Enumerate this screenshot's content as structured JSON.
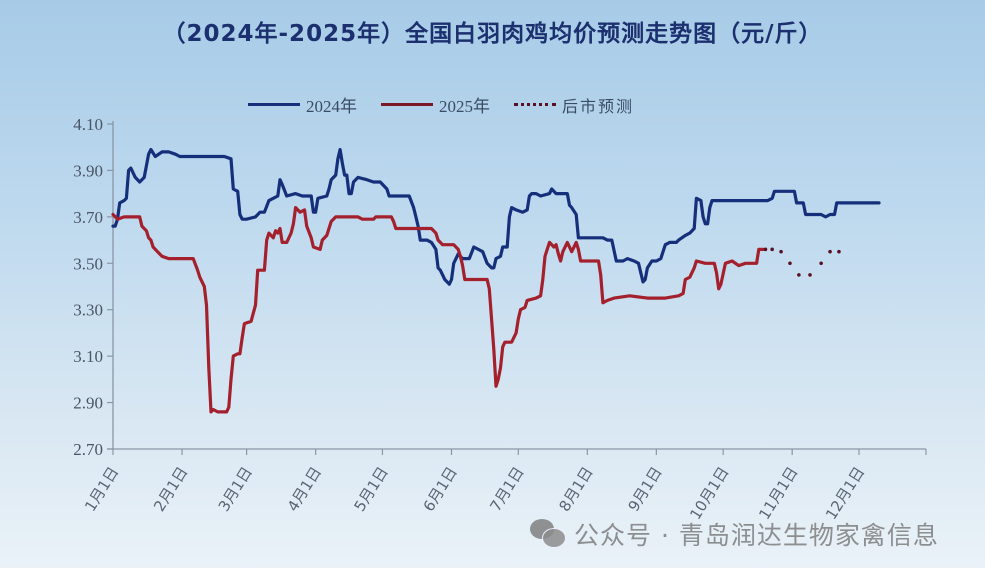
{
  "title": "（2024年-2025年）全国白羽肉鸡均价预测走势图（元/斤）",
  "legend": [
    {
      "label": "2024年",
      "color": "#152f7a",
      "style": "solid"
    },
    {
      "label": "2025年",
      "color": "#a3202c",
      "style": "solid"
    },
    {
      "label": "后市预测",
      "color": "#5a1024",
      "style": "dotted"
    }
  ],
  "watermark": "公众号 · 青岛润达生物家禽信息",
  "chart_data": {
    "type": "line",
    "title": "（2024年-2025年）全国白羽肉鸡均价预测走势图（元/斤）",
    "xlabel": "",
    "ylabel": "元/斤",
    "ylim": [
      2.7,
      4.1
    ],
    "yticks": [
      "4.10",
      "3.90",
      "3.70",
      "3.50",
      "3.30",
      "3.10",
      "2.90",
      "2.70"
    ],
    "xticks": [
      "1月1日",
      "2月1日",
      "3月1日",
      "4月1日",
      "5月1日",
      "6月1日",
      "7月1日",
      "8月1日",
      "9月1日",
      "10月1日",
      "11月1日",
      "12月1日"
    ],
    "xtick_days": [
      0,
      31,
      60,
      91,
      121,
      152,
      182,
      213,
      244,
      274,
      305,
      335
    ],
    "x_unit": "day_of_year",
    "grid": false,
    "legend_position": "top",
    "series": [
      {
        "name": "2024年",
        "color": "#152f7a",
        "style": "solid",
        "points": [
          [
            0,
            3.66
          ],
          [
            1,
            3.66
          ],
          [
            2,
            3.69
          ],
          [
            3,
            3.76
          ],
          [
            5,
            3.77
          ],
          [
            6,
            3.78
          ],
          [
            7,
            3.9
          ],
          [
            8,
            3.91
          ],
          [
            10,
            3.87
          ],
          [
            12,
            3.85
          ],
          [
            14,
            3.87
          ],
          [
            15,
            3.92
          ],
          [
            16,
            3.97
          ],
          [
            17,
            3.99
          ],
          [
            19,
            3.96
          ],
          [
            22,
            3.98
          ],
          [
            25,
            3.98
          ],
          [
            28,
            3.97
          ],
          [
            30,
            3.96
          ],
          [
            40,
            3.96
          ],
          [
            45,
            3.96
          ],
          [
            50,
            3.96
          ],
          [
            53,
            3.95
          ],
          [
            54,
            3.82
          ],
          [
            56,
            3.81
          ],
          [
            57,
            3.71
          ],
          [
            58,
            3.69
          ],
          [
            60,
            3.69
          ],
          [
            64,
            3.7
          ],
          [
            66,
            3.72
          ],
          [
            68,
            3.72
          ],
          [
            70,
            3.77
          ],
          [
            72,
            3.78
          ],
          [
            74,
            3.79
          ],
          [
            75,
            3.86
          ],
          [
            76,
            3.84
          ],
          [
            78,
            3.79
          ],
          [
            82,
            3.8
          ],
          [
            85,
            3.79
          ],
          [
            89,
            3.79
          ],
          [
            90,
            3.72
          ],
          [
            91,
            3.72
          ],
          [
            92,
            3.78
          ],
          [
            96,
            3.79
          ],
          [
            97,
            3.82
          ],
          [
            98,
            3.86
          ],
          [
            100,
            3.88
          ],
          [
            101,
            3.95
          ],
          [
            102,
            3.99
          ],
          [
            103,
            3.93
          ],
          [
            104,
            3.88
          ],
          [
            105,
            3.88
          ],
          [
            106,
            3.8
          ],
          [
            107,
            3.8
          ],
          [
            108,
            3.85
          ],
          [
            110,
            3.87
          ],
          [
            114,
            3.86
          ],
          [
            117,
            3.85
          ],
          [
            120,
            3.85
          ],
          [
            121,
            3.84
          ],
          [
            123,
            3.82
          ],
          [
            124,
            3.79
          ],
          [
            132,
            3.79
          ],
          [
            133,
            3.79
          ],
          [
            135,
            3.74
          ],
          [
            136,
            3.7
          ],
          [
            137,
            3.66
          ],
          [
            138,
            3.6
          ],
          [
            141,
            3.6
          ],
          [
            143,
            3.59
          ],
          [
            145,
            3.56
          ],
          [
            146,
            3.48
          ],
          [
            147,
            3.47
          ],
          [
            149,
            3.43
          ],
          [
            151,
            3.41
          ],
          [
            152,
            3.43
          ],
          [
            153,
            3.5
          ],
          [
            155,
            3.54
          ],
          [
            157,
            3.52
          ],
          [
            160,
            3.52
          ],
          [
            162,
            3.57
          ],
          [
            166,
            3.55
          ],
          [
            168,
            3.5
          ],
          [
            170,
            3.48
          ],
          [
            171,
            3.48
          ],
          [
            172,
            3.52
          ],
          [
            174,
            3.53
          ],
          [
            175,
            3.57
          ],
          [
            177,
            3.57
          ],
          [
            178,
            3.7
          ],
          [
            179,
            3.74
          ],
          [
            181,
            3.73
          ],
          [
            184,
            3.72
          ],
          [
            186,
            3.73
          ],
          [
            187,
            3.79
          ],
          [
            188,
            3.8
          ],
          [
            190,
            3.8
          ],
          [
            192,
            3.79
          ],
          [
            196,
            3.8
          ],
          [
            197,
            3.82
          ],
          [
            199,
            3.8
          ],
          [
            204,
            3.8
          ],
          [
            205,
            3.75
          ],
          [
            206,
            3.74
          ],
          [
            208,
            3.71
          ],
          [
            209,
            3.61
          ],
          [
            215,
            3.61
          ],
          [
            220,
            3.61
          ],
          [
            222,
            3.6
          ],
          [
            224,
            3.6
          ],
          [
            226,
            3.51
          ],
          [
            229,
            3.51
          ],
          [
            231,
            3.52
          ],
          [
            234,
            3.51
          ],
          [
            236,
            3.5
          ],
          [
            238,
            3.42
          ],
          [
            239,
            3.43
          ],
          [
            240,
            3.48
          ],
          [
            242,
            3.51
          ],
          [
            244,
            3.51
          ],
          [
            246,
            3.52
          ],
          [
            248,
            3.58
          ],
          [
            250,
            3.59
          ],
          [
            253,
            3.59
          ],
          [
            254,
            3.6
          ],
          [
            257,
            3.62
          ],
          [
            259,
            3.63
          ],
          [
            261,
            3.65
          ],
          [
            262,
            3.78
          ],
          [
            264,
            3.77
          ],
          [
            265,
            3.7
          ],
          [
            266,
            3.67
          ],
          [
            267,
            3.67
          ],
          [
            268,
            3.74
          ],
          [
            269,
            3.77
          ],
          [
            278,
            3.77
          ],
          [
            287,
            3.77
          ],
          [
            294,
            3.77
          ],
          [
            296,
            3.78
          ],
          [
            297,
            3.81
          ],
          [
            300,
            3.81
          ],
          [
            306,
            3.81
          ],
          [
            307,
            3.76
          ],
          [
            310,
            3.76
          ],
          [
            311,
            3.71
          ],
          [
            318,
            3.71
          ],
          [
            320,
            3.7
          ],
          [
            322,
            3.71
          ],
          [
            324,
            3.71
          ],
          [
            325,
            3.76
          ],
          [
            333,
            3.76
          ],
          [
            338,
            3.76
          ],
          [
            344,
            3.76
          ]
        ]
      },
      {
        "name": "2025年",
        "color": "#a3202c",
        "style": "solid",
        "points": [
          [
            0,
            3.71
          ],
          [
            2,
            3.69
          ],
          [
            5,
            3.7
          ],
          [
            12,
            3.7
          ],
          [
            13,
            3.66
          ],
          [
            15,
            3.64
          ],
          [
            16,
            3.61
          ],
          [
            17,
            3.6
          ],
          [
            18,
            3.57
          ],
          [
            20,
            3.55
          ],
          [
            22,
            3.53
          ],
          [
            25,
            3.52
          ],
          [
            33,
            3.52
          ],
          [
            35,
            3.52
          ],
          [
            36,
            3.52
          ],
          [
            38,
            3.47
          ],
          [
            39,
            3.44
          ],
          [
            41,
            3.4
          ],
          [
            42,
            3.32
          ],
          [
            43,
            3.05
          ],
          [
            44,
            2.86
          ],
          [
            45,
            2.87
          ],
          [
            47,
            2.86
          ],
          [
            49,
            2.86
          ],
          [
            51,
            2.86
          ],
          [
            52,
            2.88
          ],
          [
            53,
            3.0
          ],
          [
            54,
            3.1
          ],
          [
            56,
            3.11
          ],
          [
            57,
            3.11
          ],
          [
            58,
            3.18
          ],
          [
            59,
            3.24
          ],
          [
            62,
            3.25
          ],
          [
            64,
            3.32
          ],
          [
            65,
            3.47
          ],
          [
            68,
            3.47
          ],
          [
            69,
            3.6
          ],
          [
            70,
            3.63
          ],
          [
            72,
            3.61
          ],
          [
            73,
            3.64
          ],
          [
            74,
            3.63
          ],
          [
            75,
            3.65
          ],
          [
            76,
            3.59
          ],
          [
            78,
            3.59
          ],
          [
            80,
            3.63
          ],
          [
            81,
            3.67
          ],
          [
            82,
            3.74
          ],
          [
            83,
            3.73
          ],
          [
            84,
            3.72
          ],
          [
            86,
            3.73
          ],
          [
            87,
            3.66
          ],
          [
            89,
            3.61
          ],
          [
            90,
            3.57
          ],
          [
            93,
            3.56
          ],
          [
            94,
            3.6
          ],
          [
            96,
            3.62
          ],
          [
            98,
            3.68
          ],
          [
            100,
            3.7
          ],
          [
            105,
            3.7
          ],
          [
            110,
            3.7
          ],
          [
            112,
            3.69
          ],
          [
            115,
            3.69
          ],
          [
            117,
            3.69
          ],
          [
            118,
            3.7
          ],
          [
            123,
            3.7
          ],
          [
            125,
            3.7
          ],
          [
            126,
            3.68
          ],
          [
            127,
            3.65
          ],
          [
            134,
            3.65
          ],
          [
            137,
            3.65
          ],
          [
            140,
            3.65
          ],
          [
            143,
            3.65
          ],
          [
            145,
            3.63
          ],
          [
            146,
            3.6
          ],
          [
            148,
            3.58
          ],
          [
            153,
            3.58
          ],
          [
            155,
            3.56
          ],
          [
            156,
            3.53
          ],
          [
            157,
            3.49
          ],
          [
            158,
            3.43
          ],
          [
            163,
            3.43
          ],
          [
            168,
            3.43
          ],
          [
            169,
            3.39
          ],
          [
            171,
            3.13
          ],
          [
            172,
            2.97
          ],
          [
            173,
            3.0
          ],
          [
            174,
            3.05
          ],
          [
            175,
            3.14
          ],
          [
            176,
            3.16
          ],
          [
            179,
            3.16
          ],
          [
            181,
            3.2
          ],
          [
            182,
            3.26
          ],
          [
            183,
            3.3
          ],
          [
            185,
            3.31
          ],
          [
            186,
            3.34
          ],
          [
            190,
            3.35
          ],
          [
            192,
            3.36
          ],
          [
            193,
            3.43
          ],
          [
            194,
            3.53
          ],
          [
            195,
            3.56
          ],
          [
            196,
            3.59
          ],
          [
            198,
            3.57
          ],
          [
            199,
            3.58
          ],
          [
            200,
            3.54
          ],
          [
            201,
            3.51
          ],
          [
            202,
            3.55
          ],
          [
            203,
            3.57
          ],
          [
            204,
            3.59
          ],
          [
            206,
            3.55
          ],
          [
            207,
            3.57
          ],
          [
            208,
            3.59
          ],
          [
            209,
            3.56
          ],
          [
            210,
            3.51
          ],
          [
            215,
            3.51
          ],
          [
            218,
            3.51
          ],
          [
            219,
            3.45
          ],
          [
            220,
            3.33
          ],
          [
            222,
            3.34
          ],
          [
            225,
            3.35
          ],
          [
            232,
            3.36
          ],
          [
            240,
            3.35
          ],
          [
            248,
            3.35
          ],
          [
            254,
            3.36
          ],
          [
            256,
            3.37
          ],
          [
            257,
            3.43
          ],
          [
            259,
            3.44
          ],
          [
            261,
            3.48
          ],
          [
            262,
            3.51
          ],
          [
            266,
            3.5
          ],
          [
            270,
            3.5
          ],
          [
            271,
            3.46
          ],
          [
            272,
            3.39
          ],
          [
            273,
            3.41
          ],
          [
            275,
            3.5
          ],
          [
            278,
            3.51
          ],
          [
            281,
            3.49
          ],
          [
            284,
            3.5
          ],
          [
            289,
            3.5
          ],
          [
            290,
            3.56
          ],
          [
            292,
            3.56
          ]
        ]
      },
      {
        "name": "后市预测",
        "color": "#5a1024",
        "style": "dotted",
        "points": [
          [
            293,
            3.56
          ],
          [
            296,
            3.56
          ],
          [
            300,
            3.55
          ],
          [
            304,
            3.5
          ],
          [
            308,
            3.45
          ],
          [
            313,
            3.45
          ],
          [
            318,
            3.5
          ],
          [
            322,
            3.55
          ],
          [
            326,
            3.55
          ]
        ]
      }
    ]
  }
}
